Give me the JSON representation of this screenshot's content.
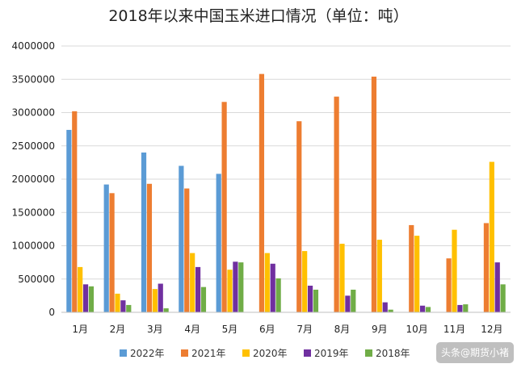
{
  "chart_data": {
    "type": "bar",
    "title": "2018年以来中国玉米进口情况（单位：吨）",
    "xlabel": "",
    "ylabel": "",
    "ylim": [
      0,
      4000000
    ],
    "y_ticks": [
      "0",
      "500000",
      "1000000",
      "1500000",
      "2000000",
      "2500000",
      "3000000",
      "3500000",
      "4000000"
    ],
    "grid": true,
    "legend_position": "bottom",
    "categories": [
      "1月",
      "2月",
      "3月",
      "4月",
      "5月",
      "6月",
      "7月",
      "8月",
      "9月",
      "10月",
      "11月",
      "12月"
    ],
    "series": [
      {
        "name": "2022年",
        "color": "#5b9bd5",
        "values": [
          2740000,
          1920000,
          2400000,
          2200000,
          2080000,
          null,
          null,
          null,
          null,
          null,
          null,
          null
        ]
      },
      {
        "name": "2021年",
        "color": "#ed7d31",
        "values": [
          3020000,
          1790000,
          1930000,
          1860000,
          3160000,
          3580000,
          2870000,
          3240000,
          3540000,
          1310000,
          810000,
          1340000
        ]
      },
      {
        "name": "2020年",
        "color": "#ffc000",
        "values": [
          680000,
          280000,
          350000,
          890000,
          640000,
          890000,
          920000,
          1030000,
          1090000,
          1150000,
          1240000,
          2260000
        ]
      },
      {
        "name": "2019年",
        "color": "#7030a0",
        "values": [
          420000,
          180000,
          430000,
          680000,
          760000,
          730000,
          400000,
          250000,
          150000,
          100000,
          110000,
          750000
        ]
      },
      {
        "name": "2018年",
        "color": "#70ad47",
        "values": [
          390000,
          110000,
          60000,
          380000,
          750000,
          510000,
          340000,
          340000,
          40000,
          80000,
          120000,
          420000
        ]
      }
    ]
  },
  "watermark": {
    "text": "头条@期货小褚"
  }
}
